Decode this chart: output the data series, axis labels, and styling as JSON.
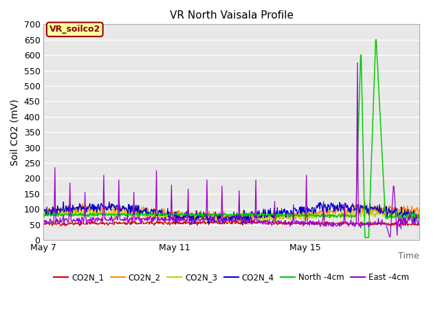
{
  "title": "VR North Vaisala Profile",
  "ylabel": "Soil CO2 (mV)",
  "xlabel": "Time",
  "ylim": [
    0,
    700
  ],
  "yticks": [
    0,
    50,
    100,
    150,
    200,
    250,
    300,
    350,
    400,
    450,
    500,
    550,
    600,
    650,
    700
  ],
  "fig_bg_color": "#ffffff",
  "plot_bg_color": "#e8e8e8",
  "grid_color": "#ffffff",
  "annotation_text": "VR_soilco2",
  "annotation_bg": "#ffffa0",
  "annotation_border": "#990000",
  "series_colors": {
    "CO2N_1": "#cc0000",
    "CO2N_2": "#ff8800",
    "CO2N_3": "#cccc00",
    "CO2N_4": "#0000cc",
    "North -4cm": "#00cc00",
    "East -4cm": "#9900cc"
  },
  "legend_labels": [
    "CO2N_1",
    "CO2N_2",
    "CO2N_3",
    "CO2N_4",
    "North -4cm",
    "East -4cm"
  ],
  "xtick_labels": [
    "May 7",
    "May 11",
    "May 15"
  ],
  "xtick_positions": [
    0,
    4,
    8
  ],
  "n_points": 700,
  "title_fontsize": 11,
  "axis_label_fontsize": 10,
  "tick_fontsize": 9
}
